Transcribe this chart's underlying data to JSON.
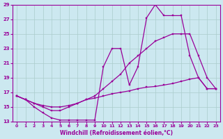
{
  "xlabel": "Windchill (Refroidissement éolien,°C)",
  "background_color": "#cce8f0",
  "grid_color": "#aacccc",
  "line_color": "#990099",
  "xlim": [
    -0.5,
    23.5
  ],
  "ylim": [
    13,
    29
  ],
  "xticks": [
    0,
    1,
    2,
    3,
    4,
    5,
    6,
    7,
    8,
    9,
    10,
    11,
    12,
    13,
    14,
    15,
    16,
    17,
    18,
    19,
    20,
    21,
    22,
    23
  ],
  "yticks": [
    13,
    15,
    17,
    19,
    21,
    23,
    25,
    27,
    29
  ],
  "line1_x": [
    0,
    1,
    2,
    3,
    4,
    5,
    6,
    7,
    8,
    9,
    10,
    11,
    12,
    13,
    14,
    15,
    16,
    17,
    18,
    19,
    20,
    21,
    22,
    23
  ],
  "line1_y": [
    16.5,
    16.0,
    15.0,
    14.2,
    13.5,
    13.2,
    13.2,
    13.2,
    13.2,
    13.2,
    20.5,
    23.0,
    23.0,
    18.0,
    20.5,
    27.2,
    29.0,
    27.5,
    27.5,
    27.5,
    22.0,
    19.0,
    17.5,
    17.5
  ],
  "line2_x": [
    0,
    1,
    2,
    3,
    4,
    5,
    6,
    7,
    8,
    9,
    10,
    11,
    12,
    13,
    14,
    15,
    16,
    17,
    18,
    19,
    20,
    21,
    22,
    23
  ],
  "line2_y": [
    16.5,
    16.0,
    15.5,
    15.0,
    14.5,
    14.5,
    15.0,
    15.5,
    16.0,
    16.5,
    17.5,
    18.5,
    19.5,
    21.0,
    22.0,
    23.0,
    24.0,
    24.5,
    25.0,
    25.0,
    25.0,
    22.0,
    19.0,
    17.5
  ],
  "line3_x": [
    0,
    1,
    2,
    3,
    4,
    5,
    6,
    7,
    8,
    9,
    10,
    11,
    12,
    13,
    14,
    15,
    16,
    17,
    18,
    19,
    20,
    21,
    22,
    23
  ],
  "line3_y": [
    16.5,
    16.0,
    15.5,
    15.2,
    15.0,
    15.0,
    15.2,
    15.5,
    16.0,
    16.2,
    16.5,
    16.8,
    17.0,
    17.2,
    17.5,
    17.7,
    17.8,
    18.0,
    18.2,
    18.5,
    18.8,
    19.0,
    17.5,
    17.5
  ]
}
